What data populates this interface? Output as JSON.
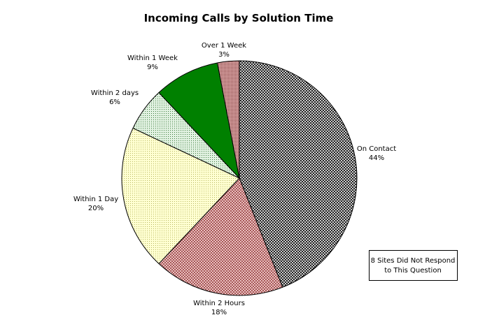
{
  "chart_data": {
    "type": "pie",
    "title": "Incoming Calls by Solution Time",
    "slices": [
      {
        "label": "On Contact",
        "value": 44,
        "value_label": "44%",
        "color": "#9a9a9a",
        "pattern": "crosshatch"
      },
      {
        "label": "Within 2 Hours",
        "value": 18,
        "value_label": "18%",
        "color": "#f2c6c6",
        "pattern": "crosshatch"
      },
      {
        "label": "Within 1 Day",
        "value": 20,
        "value_label": "20%",
        "color": "#ffffc8",
        "pattern": "dots"
      },
      {
        "label": "Within 2 days",
        "value": 6,
        "value_label": "6%",
        "color": "#dceedc",
        "pattern": "dots"
      },
      {
        "label": "Within 1 Week",
        "value": 9,
        "value_label": "9%",
        "color": "#008000",
        "pattern": "solid"
      },
      {
        "label": "Over 1 Week",
        "value": 3,
        "value_label": "3%",
        "color": "#c98c8c",
        "pattern": "dots"
      }
    ],
    "start_position": "top",
    "direction": "clockwise",
    "legend": "none",
    "annotation": {
      "lines": [
        "8 Sites Did Not Respond",
        "to This Question"
      ],
      "placement": "bottom-right"
    }
  }
}
